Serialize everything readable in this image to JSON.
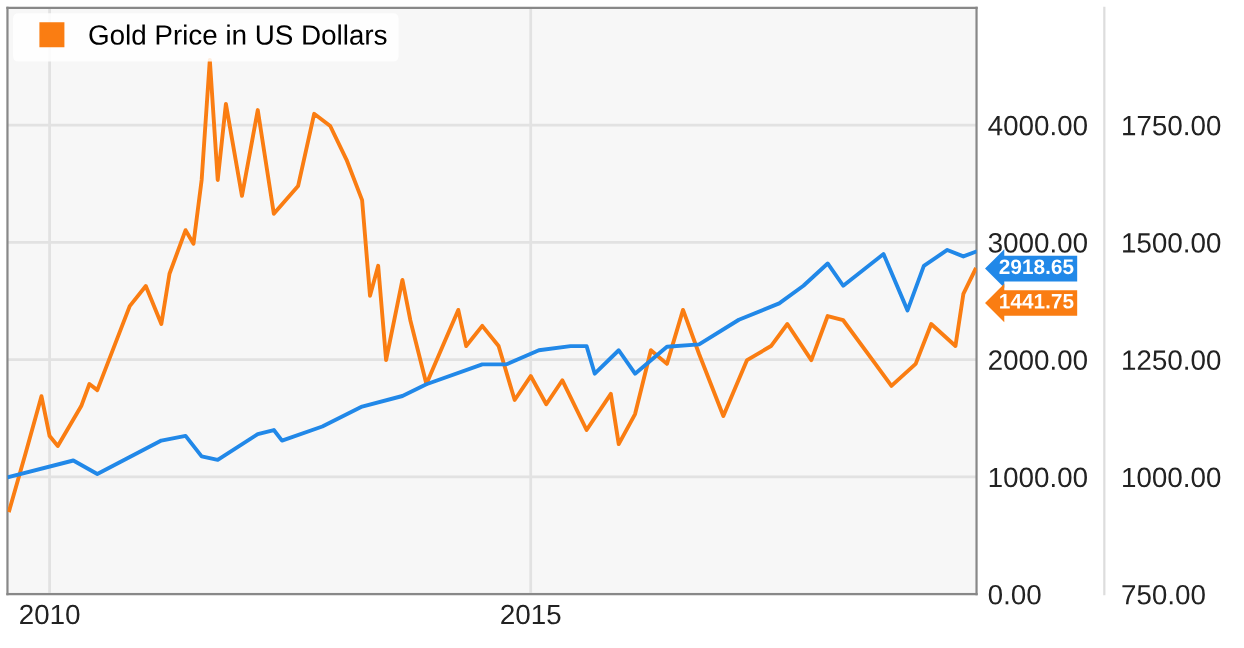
{
  "chart_data": {
    "type": "line",
    "series": [
      {
        "color": "#2188e8",
        "axis": "y",
        "x": [
          "2009-08",
          "2010-04",
          "2010-07",
          "2011-03",
          "2011-06",
          "2011-08",
          "2011-10",
          "2012-03",
          "2012-05",
          "2012-06",
          "2012-11",
          "2013-04",
          "2013-09",
          "2013-12",
          "2014-07",
          "2014-10",
          "2015-02",
          "2015-06",
          "2015-08",
          "2015-09",
          "2015-12",
          "2016-02",
          "2016-06",
          "2016-10",
          "2017-03",
          "2017-08",
          "2017-11",
          "2018-02",
          "2018-04",
          "2018-09",
          "2018-12",
          "2019-02",
          "2019-05",
          "2019-07",
          "2019-08-15"
        ],
        "values": [
          1000,
          1140,
          1025,
          1310,
          1350,
          1175,
          1145,
          1365,
          1400,
          1310,
          1430,
          1600,
          1690,
          1790,
          1960,
          1960,
          2080,
          2115,
          2115,
          1880,
          2080,
          1880,
          2110,
          2130,
          2340,
          2480,
          2630,
          2820,
          2630,
          2900,
          2420,
          2800,
          2935,
          2880,
          2918.65
        ],
        "value_labels": [
          null,
          null,
          null,
          null,
          null,
          null,
          null,
          null,
          null,
          null,
          null,
          null,
          null,
          null,
          null,
          null,
          null,
          null,
          null,
          null,
          null,
          null,
          null,
          null,
          null,
          null,
          null,
          null,
          null,
          null,
          null,
          null,
          null,
          null,
          "2918.65"
        ]
      },
      {
        "name": "Gold Price in US Dollars",
        "color": "#fa7d12",
        "axis": "y2",
        "x": [
          "2009-08",
          "2009-10",
          "2009-12",
          "2010-01",
          "2010-02",
          "2010-05",
          "2010-06",
          "2010-07",
          "2010-11",
          "2011-01",
          "2011-03",
          "2011-04",
          "2011-06",
          "2011-07",
          "2011-08",
          "2011-09",
          "2011-10",
          "2011-11",
          "2012-01",
          "2012-03",
          "2012-05",
          "2012-08",
          "2012-10",
          "2012-12",
          "2013-02",
          "2013-04",
          "2013-05",
          "2013-06",
          "2013-07",
          "2013-09",
          "2013-10",
          "2013-12",
          "2014-02",
          "2014-04",
          "2014-05",
          "2014-07",
          "2014-09",
          "2014-11",
          "2015-01",
          "2015-03",
          "2015-05",
          "2015-08",
          "2015-11",
          "2015-12",
          "2016-02",
          "2016-04",
          "2016-06",
          "2016-08",
          "2016-10",
          "2017-01",
          "2017-04",
          "2017-07",
          "2017-09",
          "2017-12",
          "2018-02",
          "2018-04",
          "2018-08",
          "2018-10",
          "2019-01",
          "2019-03",
          "2019-06",
          "2019-07",
          "2019-08-15"
        ],
        "values": [
          929,
          1049,
          1172,
          1087,
          1066,
          1151,
          1198,
          1185,
          1364,
          1407,
          1326,
          1433,
          1526,
          1497,
          1633,
          1889,
          1633,
          1795,
          1599,
          1782,
          1561,
          1620,
          1774,
          1748,
          1676,
          1590,
          1386,
          1450,
          1249,
          1420,
          1334,
          1198,
          1279,
          1356,
          1279,
          1322,
          1279,
          1164,
          1215,
          1155,
          1206,
          1100,
          1177,
          1070,
          1134,
          1270,
          1241,
          1356,
          1262,
          1130,
          1249,
          1279,
          1326,
          1249,
          1343,
          1334,
          1241,
          1194,
          1241,
          1326,
          1279,
          1390,
          1441.75
        ],
        "value_labels": [
          null,
          null,
          null,
          null,
          null,
          null,
          null,
          null,
          null,
          null,
          null,
          null,
          null,
          null,
          null,
          null,
          null,
          null,
          null,
          null,
          null,
          null,
          null,
          null,
          null,
          null,
          null,
          null,
          null,
          null,
          null,
          null,
          null,
          null,
          null,
          null,
          null,
          null,
          null,
          null,
          null,
          null,
          null,
          null,
          null,
          null,
          null,
          null,
          null,
          null,
          null,
          null,
          null,
          null,
          null,
          null,
          null,
          null,
          null,
          null,
          null,
          null,
          "1441.75"
        ]
      }
    ],
    "xlim": [
      "2009-07-25",
      "2019-08-20"
    ],
    "xticks": [
      {
        "value": "2010-01",
        "label": "2010"
      },
      {
        "value": "2015-01",
        "label": "2015"
      }
    ],
    "ylim": [
      0,
      5000
    ],
    "yticks": [
      {
        "value": 0,
        "label": "0.00"
      },
      {
        "value": 1000,
        "label": "1000.00"
      },
      {
        "value": 2000,
        "label": "2000.00"
      },
      {
        "value": 3000,
        "label": "3000.00"
      },
      {
        "value": 4000,
        "label": "4000.00"
      }
    ],
    "y2lim": [
      750,
      2000
    ],
    "y2ticks": [
      {
        "value": 750,
        "label": "750.00"
      },
      {
        "value": 1000,
        "label": "1000.00"
      },
      {
        "value": 1250,
        "label": "1250.00"
      },
      {
        "value": 1500,
        "label": "1500.00"
      },
      {
        "value": 1750,
        "label": "1750.00"
      }
    ],
    "grid": true,
    "legend": "top left"
  }
}
